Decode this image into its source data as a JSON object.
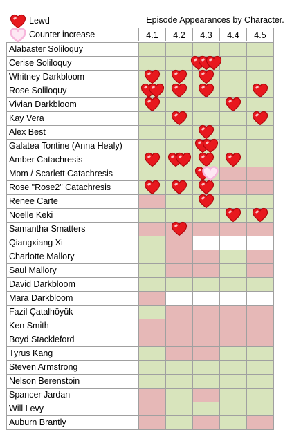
{
  "legend": {
    "lewd": "Lewd",
    "counter": "Counter increase",
    "lewd_icon": "red-heart-icon",
    "counter_icon": "pink-outline-heart-icon"
  },
  "colors": {
    "appeared": "#d8e4bc",
    "not_appeared": "#e6b8b7",
    "heart_red": "#e8181e",
    "heart_pink": "#f7b6dc"
  },
  "chart_data": {
    "type": "table",
    "title": "Episode Appearances by Character.",
    "episodes": [
      "4.1",
      "4.2",
      "4.3",
      "4.4",
      "4.5"
    ],
    "value_key": "g = appeared, r = not appeared, w = no data",
    "rows": [
      {
        "name": "Alabaster Soliloquy",
        "cells": [
          "g",
          "g",
          "g",
          "g",
          "g"
        ],
        "lewd": [
          0,
          0,
          0,
          0,
          0
        ],
        "counter": [
          0,
          0,
          0,
          0,
          0
        ]
      },
      {
        "name": "Cerise Soliloquy",
        "cells": [
          "g",
          "g",
          "g",
          "g",
          "g"
        ],
        "lewd": [
          0,
          0,
          3,
          0,
          0
        ],
        "counter": [
          0,
          0,
          0,
          0,
          0
        ]
      },
      {
        "name": "Whitney Darkbloom",
        "cells": [
          "g",
          "g",
          "g",
          "g",
          "g"
        ],
        "lewd": [
          1,
          1,
          1,
          0,
          0
        ],
        "counter": [
          0,
          0,
          0,
          0,
          0
        ]
      },
      {
        "name": "Rose Soliloquy",
        "cells": [
          "g",
          "g",
          "g",
          "g",
          "g"
        ],
        "lewd": [
          2,
          1,
          1,
          0,
          1
        ],
        "counter": [
          0,
          0,
          0,
          0,
          0
        ]
      },
      {
        "name": "Vivian Darkbloom",
        "cells": [
          "g",
          "g",
          "g",
          "g",
          "g"
        ],
        "lewd": [
          1,
          0,
          0,
          1,
          0
        ],
        "counter": [
          0,
          0,
          0,
          0,
          0
        ]
      },
      {
        "name": "Kay Vera",
        "cells": [
          "g",
          "g",
          "g",
          "g",
          "g"
        ],
        "lewd": [
          0,
          1,
          0,
          0,
          1
        ],
        "counter": [
          0,
          0,
          0,
          0,
          0
        ]
      },
      {
        "name": "Alex Best",
        "cells": [
          "g",
          "g",
          "g",
          "g",
          "g"
        ],
        "lewd": [
          0,
          0,
          1,
          0,
          0
        ],
        "counter": [
          0,
          0,
          0,
          0,
          0
        ]
      },
      {
        "name": "Galatea Tontine (Anna Healy)",
        "cells": [
          "g",
          "g",
          "g",
          "g",
          "g"
        ],
        "lewd": [
          0,
          0,
          2,
          0,
          0
        ],
        "counter": [
          0,
          0,
          0,
          0,
          0
        ]
      },
      {
        "name": "Amber Catachresis",
        "cells": [
          "g",
          "g",
          "g",
          "g",
          "g"
        ],
        "lewd": [
          1,
          2,
          1,
          1,
          0
        ],
        "counter": [
          0,
          0,
          0,
          0,
          0
        ]
      },
      {
        "name": "Mom / Scarlett Catachresis",
        "cells": [
          "g",
          "g",
          "g",
          "r",
          "r"
        ],
        "lewd": [
          0,
          0,
          1,
          0,
          0
        ],
        "counter": [
          0,
          0,
          1,
          0,
          0
        ]
      },
      {
        "name": "Rose \"Rose2\" Catachresis",
        "cells": [
          "g",
          "g",
          "g",
          "r",
          "r"
        ],
        "lewd": [
          1,
          1,
          1,
          0,
          0
        ],
        "counter": [
          0,
          0,
          0,
          0,
          0
        ]
      },
      {
        "name": "Renee Carte",
        "cells": [
          "r",
          "g",
          "g",
          "g",
          "g"
        ],
        "lewd": [
          0,
          0,
          1,
          0,
          0
        ],
        "counter": [
          0,
          0,
          0,
          0,
          0
        ]
      },
      {
        "name": "Noelle Keki",
        "cells": [
          "g",
          "g",
          "g",
          "g",
          "g"
        ],
        "lewd": [
          0,
          0,
          0,
          1,
          1
        ],
        "counter": [
          0,
          0,
          0,
          0,
          0
        ]
      },
      {
        "name": "Samantha Smatters",
        "cells": [
          "r",
          "r",
          "r",
          "r",
          "r"
        ],
        "lewd": [
          0,
          1,
          0,
          0,
          0
        ],
        "counter": [
          0,
          0,
          0,
          0,
          0
        ]
      },
      {
        "name": "Qiangxiang Xi",
        "cells": [
          "g",
          "r",
          "w",
          "w",
          "w"
        ],
        "lewd": [
          0,
          0,
          0,
          0,
          0
        ],
        "counter": [
          0,
          0,
          0,
          0,
          0
        ]
      },
      {
        "name": "Charlotte Mallory",
        "cells": [
          "g",
          "r",
          "r",
          "g",
          "r"
        ],
        "lewd": [
          0,
          0,
          0,
          0,
          0
        ],
        "counter": [
          0,
          0,
          0,
          0,
          0
        ]
      },
      {
        "name": "Saul Mallory",
        "cells": [
          "g",
          "r",
          "r",
          "g",
          "r"
        ],
        "lewd": [
          0,
          0,
          0,
          0,
          0
        ],
        "counter": [
          0,
          0,
          0,
          0,
          0
        ]
      },
      {
        "name": "David Darkbloom",
        "cells": [
          "g",
          "g",
          "g",
          "g",
          "g"
        ],
        "lewd": [
          0,
          0,
          0,
          0,
          0
        ],
        "counter": [
          0,
          0,
          0,
          0,
          0
        ]
      },
      {
        "name": "Mara Darkbloom",
        "cells": [
          "r",
          "w",
          "w",
          "w",
          "w"
        ],
        "lewd": [
          0,
          0,
          0,
          0,
          0
        ],
        "counter": [
          0,
          0,
          0,
          0,
          0
        ]
      },
      {
        "name": "Fazil Çatalhöyük",
        "cells": [
          "g",
          "r",
          "r",
          "r",
          "r"
        ],
        "lewd": [
          0,
          0,
          0,
          0,
          0
        ],
        "counter": [
          0,
          0,
          0,
          0,
          0
        ]
      },
      {
        "name": "Ken Smith",
        "cells": [
          "r",
          "r",
          "r",
          "r",
          "r"
        ],
        "lewd": [
          0,
          0,
          0,
          0,
          0
        ],
        "counter": [
          0,
          0,
          0,
          0,
          0
        ]
      },
      {
        "name": "Boyd Stackleford",
        "cells": [
          "r",
          "r",
          "r",
          "r",
          "r"
        ],
        "lewd": [
          0,
          0,
          0,
          0,
          0
        ],
        "counter": [
          0,
          0,
          0,
          0,
          0
        ]
      },
      {
        "name": "Tyrus Kang",
        "cells": [
          "g",
          "r",
          "r",
          "g",
          "g"
        ],
        "lewd": [
          0,
          0,
          0,
          0,
          0
        ],
        "counter": [
          0,
          0,
          0,
          0,
          0
        ]
      },
      {
        "name": "Steven Armstrong",
        "cells": [
          "g",
          "g",
          "g",
          "g",
          "g"
        ],
        "lewd": [
          0,
          0,
          0,
          0,
          0
        ],
        "counter": [
          0,
          0,
          0,
          0,
          0
        ]
      },
      {
        "name": "Nelson Berenstoin",
        "cells": [
          "g",
          "g",
          "g",
          "g",
          "g"
        ],
        "lewd": [
          0,
          0,
          0,
          0,
          0
        ],
        "counter": [
          0,
          0,
          0,
          0,
          0
        ]
      },
      {
        "name": "Spancer Jardan",
        "cells": [
          "r",
          "g",
          "r",
          "g",
          "g"
        ],
        "lewd": [
          0,
          0,
          0,
          0,
          0
        ],
        "counter": [
          0,
          0,
          0,
          0,
          0
        ]
      },
      {
        "name": "Will Levy",
        "cells": [
          "r",
          "g",
          "g",
          "g",
          "g"
        ],
        "lewd": [
          0,
          0,
          0,
          0,
          0
        ],
        "counter": [
          0,
          0,
          0,
          0,
          0
        ]
      },
      {
        "name": "Auburn Brantly",
        "cells": [
          "r",
          "g",
          "r",
          "g",
          "r"
        ],
        "lewd": [
          0,
          0,
          0,
          0,
          0
        ],
        "counter": [
          0,
          0,
          0,
          0,
          0
        ]
      }
    ]
  }
}
